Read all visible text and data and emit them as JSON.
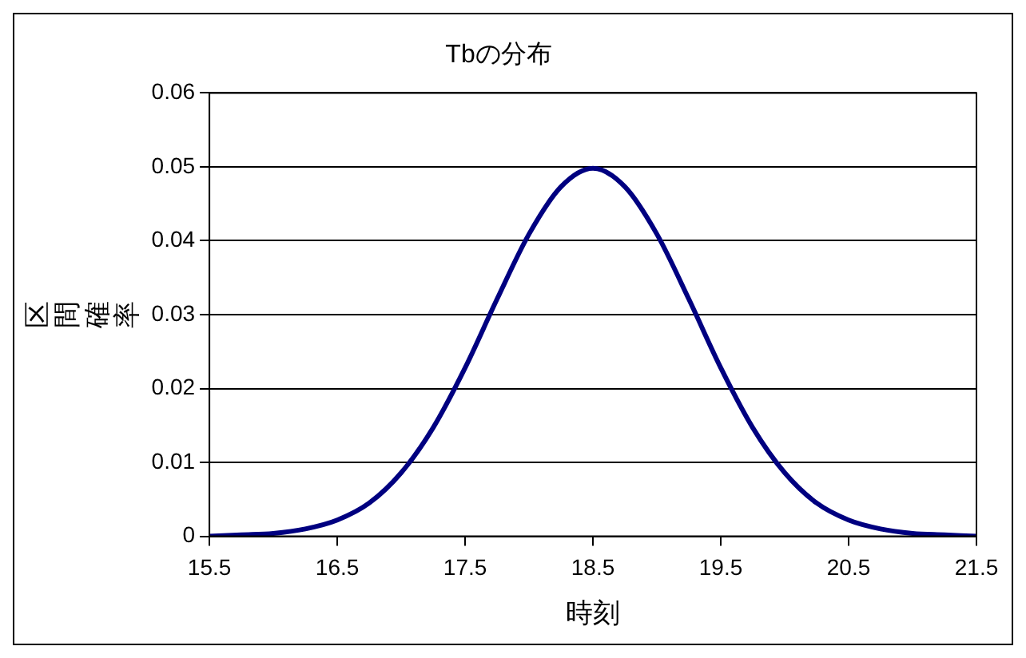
{
  "chart_data": {
    "type": "line",
    "title": "Tbの分布",
    "xlabel": "時刻",
    "ylabel": "区間確率",
    "x": [
      15.5,
      15.75,
      16,
      16.25,
      16.5,
      16.75,
      17,
      17.25,
      17.5,
      17.75,
      18,
      18.25,
      18.5,
      18.75,
      19,
      19.25,
      19.5,
      19.75,
      20,
      20.25,
      20.5,
      20.75,
      21,
      21.25,
      21.5
    ],
    "series": [
      {
        "color": "#000080",
        "values": [
          0,
          0.0002,
          0.0004,
          0.001,
          0.0022,
          0.0045,
          0.0086,
          0.0147,
          0.0228,
          0.0321,
          0.0409,
          0.0473,
          0.0498,
          0.0473,
          0.0409,
          0.0321,
          0.0228,
          0.0147,
          0.0086,
          0.0045,
          0.0022,
          0.001,
          0.0004,
          0.0002,
          0
        ]
      }
    ],
    "xlim": [
      15.5,
      21.5
    ],
    "xticks": [
      15.5,
      16.5,
      17.5,
      18.5,
      19.5,
      20.5,
      21.5
    ],
    "ylim": [
      0,
      0.06
    ],
    "yticks": [
      0,
      0.01,
      0.02,
      0.03,
      0.04,
      0.05,
      0.06
    ],
    "grid": "y"
  }
}
